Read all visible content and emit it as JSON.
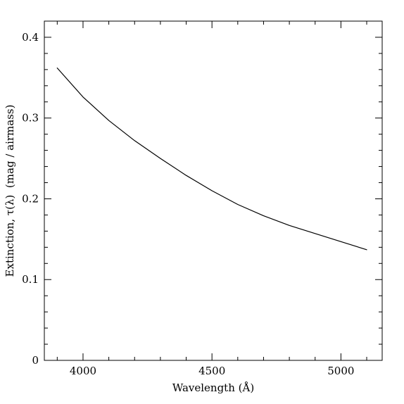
{
  "chart_data": {
    "type": "line",
    "title": "",
    "xlabel": "Wavelength (Å)",
    "ylabel": "Extinction, τ(λ)  (mag / airmass)",
    "xlim": [
      3850,
      5160
    ],
    "ylim": [
      0,
      0.42
    ],
    "xticks_major": [
      4000,
      4500,
      5000
    ],
    "xtick_labels": [
      "4000",
      "4500",
      "5000"
    ],
    "xticks_minor_step": 100,
    "yticks_major": [
      0,
      0.1,
      0.2,
      0.3,
      0.4
    ],
    "ytick_labels": [
      "0",
      "0.1",
      "0.2",
      "0.3",
      "0.4"
    ],
    "yticks_minor_step": 0.02,
    "grid": false,
    "series": [
      {
        "x": [
          3900,
          4000,
          4100,
          4200,
          4300,
          4400,
          4500,
          4600,
          4700,
          4800,
          4900,
          5000,
          5100
        ],
        "y": [
          0.362,
          0.326,
          0.297,
          0.272,
          0.25,
          0.229,
          0.21,
          0.193,
          0.179,
          0.167,
          0.157,
          0.147,
          0.137
        ]
      }
    ]
  }
}
